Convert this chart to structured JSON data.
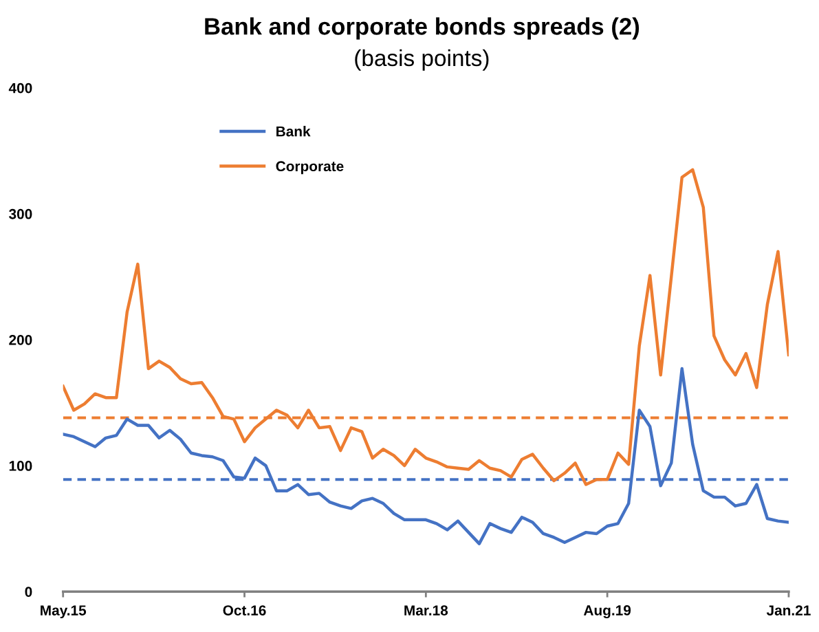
{
  "chart_data": {
    "type": "line",
    "title": "Bank and corporate bonds spreads (2)",
    "subtitle": "(basis points)",
    "categories": [
      "May.15",
      null,
      null,
      null,
      null,
      null,
      null,
      null,
      null,
      null,
      null,
      null,
      null,
      null,
      null,
      null,
      null,
      "Oct.16",
      null,
      null,
      null,
      null,
      null,
      null,
      null,
      null,
      null,
      null,
      null,
      null,
      null,
      null,
      null,
      null,
      "Mar.18",
      null,
      null,
      null,
      null,
      null,
      null,
      null,
      null,
      null,
      null,
      null,
      null,
      null,
      null,
      null,
      null,
      "Aug.19",
      null,
      null,
      null,
      null,
      null,
      null,
      null,
      null,
      null,
      null,
      null,
      null,
      null,
      null,
      null,
      null,
      "Jan.21"
    ],
    "series": [
      {
        "name": "Bank",
        "color": "#4472c4",
        "values": [
          125,
          123,
          119,
          115,
          122,
          124,
          137,
          132,
          132,
          122,
          128,
          121,
          110,
          108,
          107,
          104,
          91,
          90,
          106,
          100,
          80,
          80,
          85,
          77,
          78,
          71,
          68,
          66,
          72,
          74,
          70,
          62,
          57,
          57,
          57,
          54,
          49,
          56,
          47,
          38,
          54,
          50,
          47,
          59,
          55,
          46,
          43,
          39,
          43,
          47,
          46,
          52,
          54,
          70,
          144,
          131,
          84,
          102,
          177,
          117,
          80,
          75,
          75,
          68,
          70,
          85,
          58,
          56,
          55
        ]
      },
      {
        "name": "Corporate",
        "color": "#ed7d31",
        "values": [
          163,
          144,
          149,
          157,
          154,
          154,
          222,
          260,
          177,
          183,
          178,
          169,
          165,
          166,
          154,
          139,
          137,
          119,
          130,
          137,
          144,
          140,
          130,
          144,
          130,
          131,
          112,
          130,
          127,
          106,
          113,
          108,
          100,
          113,
          106,
          103,
          99,
          98,
          97,
          104,
          98,
          96,
          91,
          105,
          109,
          98,
          88,
          94,
          102,
          85,
          89,
          89,
          110,
          101,
          195,
          251,
          172,
          250,
          329,
          335,
          305,
          203,
          184,
          172,
          189,
          162,
          228,
          270,
          188
        ]
      }
    ],
    "ref_lines": [
      {
        "axis": "y",
        "value": 89,
        "label": null,
        "color": "#4472c4",
        "line_style": "dashed"
      },
      {
        "axis": "y",
        "value": 138,
        "label": null,
        "color": "#ed7d31",
        "line_style": "dashed"
      }
    ],
    "ylim": [
      0,
      400
    ],
    "yticks": [
      0,
      100,
      200,
      300,
      400
    ],
    "grid": false,
    "legend": "top left",
    "marker": "none",
    "line_style": "solid"
  }
}
